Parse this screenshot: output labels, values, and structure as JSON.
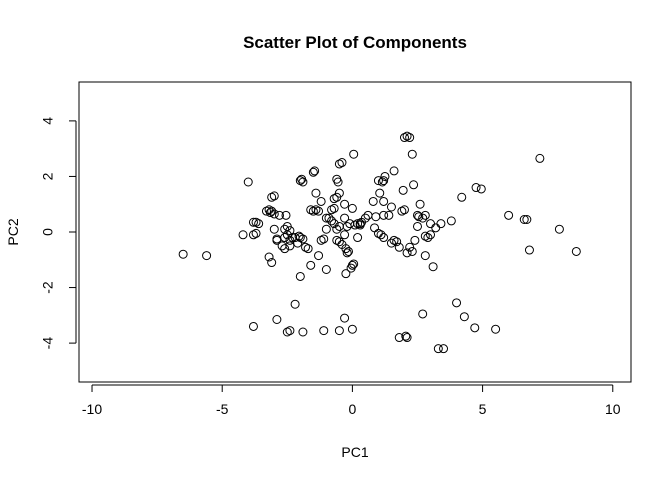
{
  "chart_data": {
    "type": "scatter",
    "title": "Scatter Plot of Components",
    "xlabel": "PC1",
    "ylabel": "PC2",
    "xlim": [
      -10.5,
      10.7
    ],
    "ylim": [
      -5.4,
      5.4
    ],
    "x_ticks": [
      -10,
      -5,
      0,
      5,
      10
    ],
    "y_ticks": [
      -4,
      -2,
      0,
      2,
      4
    ],
    "grid": false,
    "legend": "none",
    "marker": "open-circle",
    "color": "#000000",
    "points": [
      [
        -6.5,
        -0.8
      ],
      [
        -5.6,
        -0.85
      ],
      [
        -4.2,
        -0.1
      ],
      [
        -4.0,
        1.8
      ],
      [
        -3.8,
        -0.1
      ],
      [
        -3.7,
        -0.05
      ],
      [
        -3.8,
        0.35
      ],
      [
        -3.7,
        0.35
      ],
      [
        -3.6,
        0.3
      ],
      [
        -3.3,
        0.75
      ],
      [
        -3.2,
        0.8
      ],
      [
        -3.15,
        0.7
      ],
      [
        -3.1,
        0.75
      ],
      [
        -3.0,
        0.65
      ],
      [
        -3.1,
        1.25
      ],
      [
        -3.0,
        1.3
      ],
      [
        -3.2,
        -0.9
      ],
      [
        -3.1,
        -1.1
      ],
      [
        -3.0,
        0.1
      ],
      [
        -2.9,
        -0.25
      ],
      [
        -2.8,
        0.6
      ],
      [
        -2.9,
        -0.3
      ],
      [
        -2.6,
        -0.2
      ],
      [
        -2.5,
        -0.1
      ],
      [
        -2.6,
        0.1
      ],
      [
        -2.5,
        0.2
      ],
      [
        -2.4,
        -0.3
      ],
      [
        -2.3,
        -0.2
      ],
      [
        -2.7,
        -0.5
      ],
      [
        -2.6,
        -0.6
      ],
      [
        -2.4,
        -0.5
      ],
      [
        -2.55,
        0.6
      ],
      [
        -2.4,
        0.05
      ],
      [
        -2.2,
        -0.2
      ],
      [
        -2.1,
        -0.4
      ],
      [
        -2.0,
        -0.2
      ],
      [
        -1.9,
        -0.25
      ],
      [
        -2.05,
        -0.15
      ],
      [
        -2.0,
        1.85
      ],
      [
        -1.95,
        1.9
      ],
      [
        -1.9,
        1.8
      ],
      [
        -2.0,
        -1.6
      ],
      [
        -1.8,
        -0.55
      ],
      [
        -1.7,
        -0.6
      ],
      [
        -1.5,
        2.15
      ],
      [
        -1.45,
        2.2
      ],
      [
        -1.4,
        1.4
      ],
      [
        -1.6,
        0.8
      ],
      [
        -1.5,
        0.75
      ],
      [
        -1.4,
        0.8
      ],
      [
        -1.3,
        0.75
      ],
      [
        -1.2,
        -0.3
      ],
      [
        -1.1,
        -0.25
      ],
      [
        -1.0,
        0.1
      ],
      [
        -1.0,
        0.5
      ],
      [
        -1.2,
        1.1
      ],
      [
        -1.6,
        -1.2
      ],
      [
        -1.3,
        -0.85
      ],
      [
        -1.0,
        -1.35
      ],
      [
        -0.9,
        0.5
      ],
      [
        -0.8,
        0.4
      ],
      [
        -0.7,
        0.3
      ],
      [
        -0.8,
        0.8
      ],
      [
        -0.7,
        0.85
      ],
      [
        -0.6,
        0.1
      ],
      [
        -0.5,
        0.2
      ],
      [
        -0.6,
        -0.3
      ],
      [
        -0.5,
        -0.35
      ],
      [
        -0.4,
        -0.45
      ],
      [
        -0.3,
        -0.1
      ],
      [
        -0.25,
        -0.6
      ],
      [
        -0.2,
        -0.75
      ],
      [
        -0.15,
        -0.7
      ],
      [
        -0.7,
        1.2
      ],
      [
        -0.6,
        1.25
      ],
      [
        -0.5,
        1.4
      ],
      [
        -0.6,
        1.9
      ],
      [
        -0.55,
        1.8
      ],
      [
        -0.5,
        2.45
      ],
      [
        -0.4,
        2.5
      ],
      [
        -0.3,
        0.5
      ],
      [
        -0.2,
        0.2
      ],
      [
        -0.1,
        0.3
      ],
      [
        0.0,
        0.85
      ],
      [
        -0.3,
        1.0
      ],
      [
        -0.25,
        -1.5
      ],
      [
        0.0,
        -1.2
      ],
      [
        -0.05,
        -1.3
      ],
      [
        0.05,
        -1.15
      ],
      [
        0.1,
        0.25
      ],
      [
        0.2,
        0.3
      ],
      [
        0.3,
        0.3
      ],
      [
        0.35,
        0.35
      ],
      [
        0.3,
        0.25
      ],
      [
        0.05,
        2.8
      ],
      [
        0.2,
        -0.2
      ],
      [
        0.5,
        0.5
      ],
      [
        0.6,
        0.6
      ],
      [
        0.8,
        1.1
      ],
      [
        0.9,
        0.55
      ],
      [
        0.85,
        0.15
      ],
      [
        1.0,
        -0.05
      ],
      [
        1.0,
        1.85
      ],
      [
        1.15,
        1.8
      ],
      [
        1.2,
        1.85
      ],
      [
        1.25,
        2.0
      ],
      [
        1.05,
        1.4
      ],
      [
        1.2,
        1.1
      ],
      [
        1.2,
        0.6
      ],
      [
        1.1,
        -0.1
      ],
      [
        1.2,
        -0.2
      ],
      [
        1.4,
        0.6
      ],
      [
        1.5,
        0.9
      ],
      [
        1.6,
        -0.3
      ],
      [
        1.5,
        -0.4
      ],
      [
        1.7,
        -0.35
      ],
      [
        1.6,
        2.2
      ],
      [
        1.8,
        -0.55
      ],
      [
        1.9,
        0.75
      ],
      [
        2.0,
        0.8
      ],
      [
        1.95,
        1.5
      ],
      [
        2.0,
        3.4
      ],
      [
        2.1,
        3.45
      ],
      [
        2.2,
        3.4
      ],
      [
        2.3,
        2.8
      ],
      [
        2.35,
        1.7
      ],
      [
        2.2,
        -0.55
      ],
      [
        2.3,
        -0.7
      ],
      [
        2.1,
        -0.75
      ],
      [
        2.4,
        -0.3
      ],
      [
        2.5,
        0.2
      ],
      [
        2.55,
        0.55
      ],
      [
        2.6,
        1.0
      ],
      [
        2.5,
        0.6
      ],
      [
        2.7,
        0.5
      ],
      [
        2.8,
        0.6
      ],
      [
        2.8,
        -0.15
      ],
      [
        2.9,
        -0.2
      ],
      [
        3.0,
        -0.1
      ],
      [
        2.8,
        -0.85
      ],
      [
        3.0,
        0.3
      ],
      [
        3.2,
        0.15
      ],
      [
        3.1,
        -1.25
      ],
      [
        3.4,
        0.3
      ],
      [
        3.8,
        0.4
      ],
      [
        4.2,
        1.25
      ],
      [
        4.75,
        1.6
      ],
      [
        4.95,
        1.55
      ],
      [
        6.0,
        0.6
      ],
      [
        6.6,
        0.45
      ],
      [
        6.7,
        0.45
      ],
      [
        6.8,
        -0.65
      ],
      [
        7.2,
        2.65
      ],
      [
        7.95,
        0.1
      ],
      [
        8.6,
        -0.7
      ],
      [
        -3.8,
        -3.4
      ],
      [
        -2.9,
        -3.15
      ],
      [
        -2.5,
        -3.6
      ],
      [
        -2.4,
        -3.55
      ],
      [
        -1.9,
        -3.6
      ],
      [
        -2.2,
        -2.6
      ],
      [
        -1.1,
        -3.55
      ],
      [
        -0.5,
        -3.55
      ],
      [
        -0.3,
        -3.1
      ],
      [
        0.0,
        -3.5
      ],
      [
        1.8,
        -3.8
      ],
      [
        2.05,
        -3.75
      ],
      [
        2.1,
        -3.8
      ],
      [
        2.7,
        -2.95
      ],
      [
        3.3,
        -4.2
      ],
      [
        3.5,
        -4.2
      ],
      [
        4.0,
        -2.55
      ],
      [
        4.3,
        -3.05
      ],
      [
        4.7,
        -3.45
      ],
      [
        5.5,
        -3.5
      ]
    ]
  }
}
